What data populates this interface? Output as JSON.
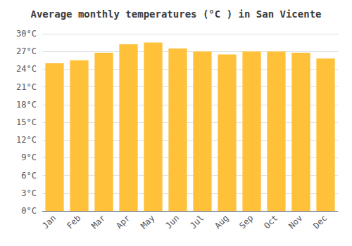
{
  "chart_data": {
    "type": "bar",
    "title": "Average monthly temperatures (°C ) in San Vicente",
    "categories": [
      "Jan",
      "Feb",
      "Mar",
      "Apr",
      "May",
      "Jun",
      "Jul",
      "Aug",
      "Sep",
      "Oct",
      "Nov",
      "Dec"
    ],
    "values": [
      25.0,
      25.5,
      26.8,
      28.2,
      28.5,
      27.5,
      27.0,
      26.5,
      27.0,
      27.0,
      26.8,
      25.8
    ],
    "color": "#FFC03A",
    "ylim": [
      0,
      30
    ],
    "yticks": [
      {
        "value": 0,
        "label": "0°C"
      },
      {
        "value": 3,
        "label": "3°C"
      },
      {
        "value": 6,
        "label": "6°C"
      },
      {
        "value": 9,
        "label": "9°C"
      },
      {
        "value": 12,
        "label": "12°C"
      },
      {
        "value": 15,
        "label": "15°C"
      },
      {
        "value": 18,
        "label": "18°C"
      },
      {
        "value": 21,
        "label": "21°C"
      },
      {
        "value": 24,
        "label": "24°C"
      },
      {
        "value": 27,
        "label": "27°C"
      },
      {
        "value": 30,
        "label": "30°C"
      }
    ],
    "grid": true
  }
}
